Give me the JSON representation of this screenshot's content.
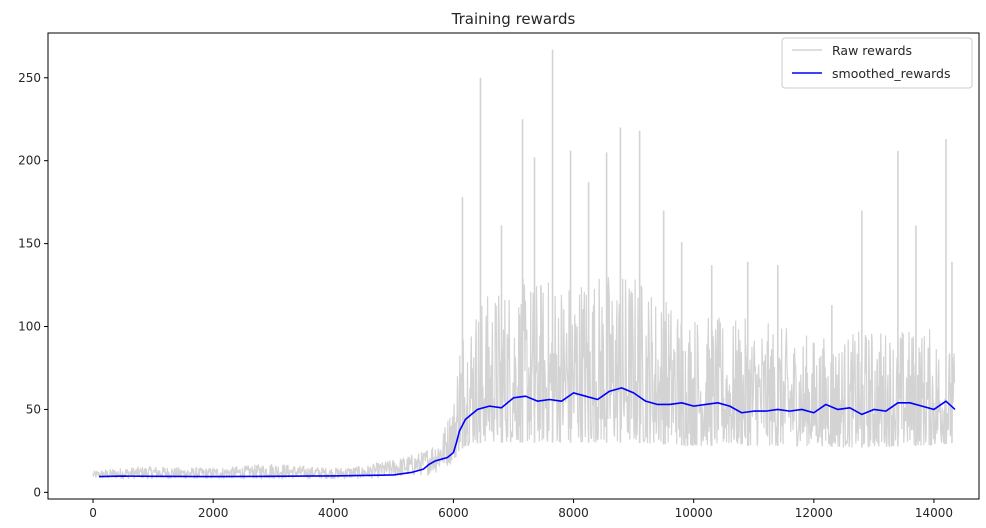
{
  "chart_data": {
    "type": "line",
    "title": "Training rewards",
    "xlabel": "",
    "ylabel": "",
    "xlim": [
      -750,
      14750
    ],
    "ylim": [
      -4,
      277
    ],
    "xticks": [
      0,
      2000,
      4000,
      6000,
      8000,
      10000,
      12000,
      14000
    ],
    "xtick_labels": [
      "0",
      "2000",
      "4000",
      "6000",
      "8000",
      "10000",
      "12000",
      "14000"
    ],
    "yticks": [
      0,
      50,
      100,
      150,
      200,
      250
    ],
    "ytick_labels": [
      "0",
      "50",
      "100",
      "150",
      "200",
      "250"
    ],
    "grid": false,
    "legend_position": "top-right",
    "series": [
      {
        "name": "Raw rewards",
        "color": "#d3d3d3",
        "style": "raw-band",
        "x": [
          0,
          500,
          1000,
          1500,
          2000,
          2500,
          3000,
          3500,
          4000,
          4500,
          5000,
          5500,
          5800,
          6000,
          6100,
          6200,
          6500,
          7000,
          7500,
          8000,
          8500,
          9000,
          9500,
          10000,
          10500,
          11000,
          11500,
          12000,
          12500,
          13000,
          13500,
          14000,
          14350
        ],
        "low": [
          8,
          8,
          8,
          8,
          8,
          8,
          8,
          8,
          8,
          8,
          9,
          10,
          12,
          18,
          25,
          28,
          30,
          30,
          30,
          30,
          30,
          30,
          29,
          28,
          28,
          28,
          28,
          28,
          27,
          27,
          28,
          28,
          30
        ],
        "high": [
          13,
          15,
          16,
          15,
          15,
          16,
          18,
          16,
          15,
          16,
          20,
          25,
          35,
          55,
          100,
          110,
          120,
          130,
          130,
          135,
          135,
          135,
          120,
          110,
          105,
          105,
          100,
          95,
          95,
          100,
          100,
          100,
          85
        ],
        "peaks": [
          {
            "x": 6150,
            "y": 178
          },
          {
            "x": 6450,
            "y": 250
          },
          {
            "x": 6800,
            "y": 161
          },
          {
            "x": 7150,
            "y": 225
          },
          {
            "x": 7350,
            "y": 202
          },
          {
            "x": 7650,
            "y": 267
          },
          {
            "x": 7950,
            "y": 206
          },
          {
            "x": 8250,
            "y": 187
          },
          {
            "x": 8550,
            "y": 205
          },
          {
            "x": 8780,
            "y": 220
          },
          {
            "x": 9100,
            "y": 218
          },
          {
            "x": 9500,
            "y": 170
          },
          {
            "x": 9800,
            "y": 151
          },
          {
            "x": 10300,
            "y": 137
          },
          {
            "x": 10900,
            "y": 139
          },
          {
            "x": 11400,
            "y": 137
          },
          {
            "x": 12300,
            "y": 113
          },
          {
            "x": 12800,
            "y": 170
          },
          {
            "x": 13400,
            "y": 206
          },
          {
            "x": 13700,
            "y": 161
          },
          {
            "x": 14200,
            "y": 213
          },
          {
            "x": 14300,
            "y": 139
          }
        ]
      },
      {
        "name": "smoothed_rewards",
        "color": "#0000ff",
        "x": [
          100,
          500,
          1000,
          1500,
          2000,
          2500,
          3000,
          3500,
          4000,
          4500,
          5000,
          5300,
          5500,
          5600,
          5700,
          5800,
          5900,
          6000,
          6050,
          6100,
          6200,
          6300,
          6400,
          6500,
          6600,
          6800,
          7000,
          7200,
          7400,
          7600,
          7800,
          8000,
          8200,
          8400,
          8600,
          8800,
          9000,
          9200,
          9400,
          9600,
          9800,
          10000,
          10200,
          10400,
          10600,
          10800,
          11000,
          11200,
          11400,
          11600,
          11800,
          12000,
          12200,
          12400,
          12600,
          12800,
          13000,
          13200,
          13400,
          13600,
          13800,
          14000,
          14200,
          14350
        ],
        "values": [
          9.5,
          9.8,
          9.7,
          9.6,
          9.5,
          9.6,
          9.7,
          9.8,
          9.9,
          10.2,
          10.5,
          12.0,
          14.0,
          17.0,
          19.0,
          20.0,
          21.0,
          24.0,
          30.0,
          37.0,
          44.0,
          47.0,
          50.0,
          51.0,
          52.0,
          51.0,
          57.0,
          58.0,
          55.0,
          56.0,
          55.0,
          60.0,
          58.0,
          56.0,
          61.0,
          63.0,
          60.0,
          55.0,
          53.0,
          53.0,
          54.0,
          52.0,
          53.0,
          54.0,
          52.0,
          48.0,
          49.0,
          49.0,
          50.0,
          49.0,
          50.0,
          48.0,
          53.0,
          50.0,
          51.0,
          47.0,
          50.0,
          49.0,
          54.0,
          54.0,
          52.0,
          50.0,
          55.0,
          50.0
        ]
      }
    ]
  }
}
